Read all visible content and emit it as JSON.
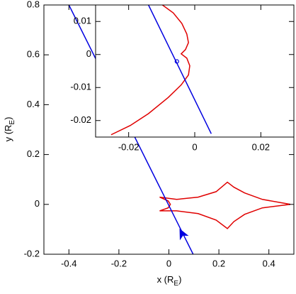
{
  "chart_data": [
    {
      "type": "line",
      "xlabel": {
        "text": "x (R",
        "sub": "E",
        "end": ")"
      },
      "ylabel": {
        "text": "y (R",
        "sub": "E",
        "end": ")"
      },
      "xlim": [
        -0.5,
        0.5
      ],
      "ylim": [
        -0.2,
        0.8
      ],
      "xticks": [
        -0.4,
        -0.2,
        0,
        0.2,
        0.4
      ],
      "yticks": [
        -0.2,
        0,
        0.2,
        0.4,
        0.6,
        0.8
      ],
      "series": [
        {
          "color": "#e00000",
          "closed": true,
          "x": [
            0.486,
            0.374,
            0.303,
            0.26,
            0.234,
            0.189,
            0.117,
            0.031,
            -0.037,
            -0.003,
            0.006,
            -0.003,
            -0.037,
            0.031,
            0.117,
            0.189,
            0.234,
            0.26,
            0.303,
            0.374
          ],
          "values": [
            0,
            0.02,
            0.046,
            0.069,
            0.089,
            0.051,
            0.029,
            0.02,
            0.029,
            0.014,
            0,
            -0.014,
            -0.026,
            -0.026,
            -0.037,
            -0.063,
            -0.097,
            -0.069,
            -0.04,
            -0.014
          ]
        },
        {
          "color": "#0000e0",
          "x": [
            -0.4,
            0.097
          ],
          "values": [
            0.8,
            -0.2
          ]
        }
      ],
      "arrow": {
        "x": 0.054,
        "y": -0.12,
        "color": "#0000e0"
      }
    },
    {
      "type": "line",
      "xlim": [
        -0.03,
        0.03
      ],
      "ylim": [
        -0.025,
        0.015
      ],
      "xticks": [
        -0.02,
        0,
        0.02
      ],
      "yticks": [
        -0.02,
        -0.01,
        0,
        0.01
      ],
      "series": [
        {
          "color": "#e00000",
          "x": [
            -0.0102,
            -0.0065,
            -0.0039,
            -0.0024,
            -0.0019,
            -0.0028,
            -0.0041,
            -0.0024,
            -0.0015,
            -0.0019,
            -0.0041,
            -0.008,
            -0.014,
            -0.0195,
            -0.0253
          ],
          "values": [
            0.0153,
            0.0126,
            0.0094,
            0.0062,
            0.0036,
            0.0015,
            0.0002,
            -0.0011,
            -0.0034,
            -0.0062,
            -0.0092,
            -0.013,
            -0.0179,
            -0.0215,
            -0.0243
          ]
        },
        {
          "color": "#0000e0",
          "x": [
            -0.014,
            0.005
          ],
          "values": [
            0.015,
            -0.024
          ]
        }
      ],
      "marker": {
        "x": -0.0054,
        "y": -0.0021,
        "color": "#0000e0"
      }
    }
  ]
}
